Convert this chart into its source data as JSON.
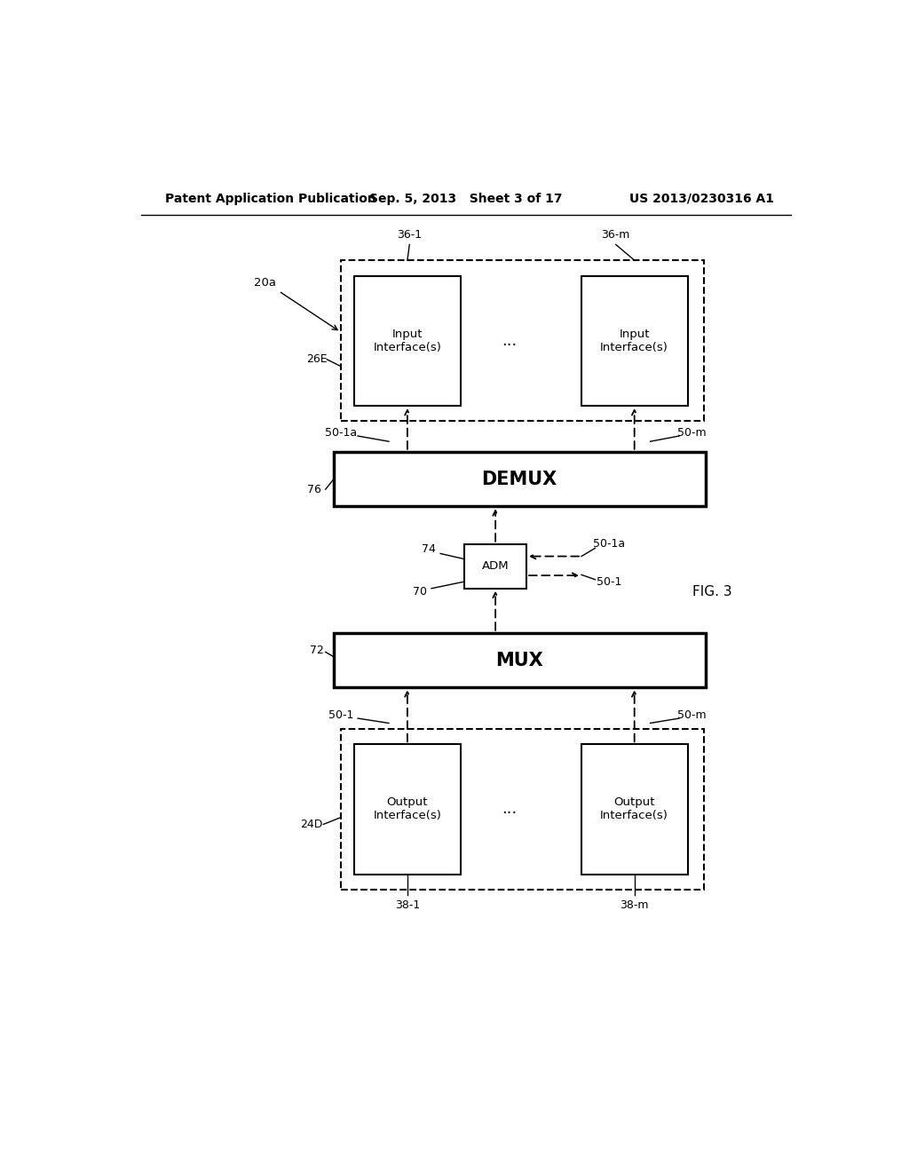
{
  "bg_color": "#ffffff",
  "header_left": "Patent Application Publication",
  "header_mid": "Sep. 5, 2013   Sheet 3 of 17",
  "header_right": "US 2013/0230316 A1",
  "fig_label": "FIG. 3",
  "label_20a": "20a",
  "label_24D": "24D",
  "label_26E": "26E",
  "label_72": "72",
  "label_76": "76",
  "label_74": "74",
  "label_70": "70",
  "label_50_1_left": "50-1",
  "label_50_1a_left": "50-1a",
  "label_50_m_right_top": "50-m",
  "label_50_m_right_bot": "50-m",
  "label_36_1": "36-1",
  "label_36_m": "36-m",
  "label_38_1": "38-1",
  "label_38_m": "38-m",
  "label_50_1a_right": "50-1a",
  "label_50_1_right": "50-1",
  "mux_label": "MUX",
  "demux_label": "DEMUX",
  "adm_label": "ADM",
  "input_if_label": "Input\nInterface(s)",
  "output_if_label": "Output\nInterface(s)",
  "dots": "..."
}
